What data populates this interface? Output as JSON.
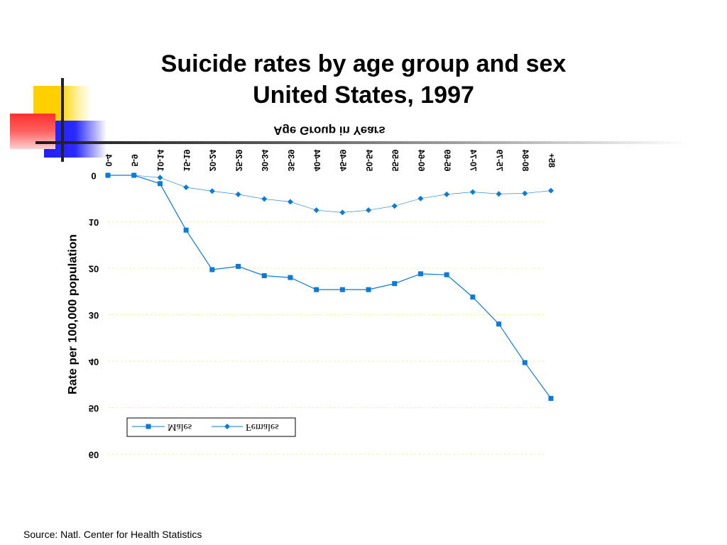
{
  "slide": {
    "title_line1": "Suicide rates by age group and sex",
    "title_line2": "United States, 1997",
    "source": "Source: Natl. Center for Health Statistics"
  },
  "colors": {
    "series": "#0a7bd8",
    "grid": "#f2f2a0",
    "deco_yellow": "#ffd700",
    "deco_red": "#ff4040",
    "deco_blue": "#2a2aff"
  },
  "chart_data": {
    "type": "line",
    "title": "",
    "xlabel": "Age Group in Years",
    "ylabel": "Rate per 100,000 population",
    "orientation": "rendered mirrored and upside-down",
    "categories": [
      "0-4",
      "5-9",
      "10-14",
      "15-19",
      "20-24",
      "25-29",
      "30-34",
      "35-39",
      "40-44",
      "45-49",
      "50-54",
      "55-59",
      "60-64",
      "65-69",
      "70-74",
      "75-79",
      "80-84",
      "85+"
    ],
    "yticks": [
      "0",
      "10",
      "20",
      "30",
      "40",
      "50",
      "60"
    ],
    "ylim": [
      0,
      60
    ],
    "grid": true,
    "legend_position": "bottom-left",
    "series": [
      {
        "name": "Males",
        "marker": "square",
        "values": [
          0,
          0,
          1.8,
          11.8,
          20.3,
          19.6,
          21.6,
          22.0,
          24.6,
          24.6,
          24.6,
          23.3,
          21.2,
          21.4,
          26.2,
          32.0,
          40.3,
          48.0
        ]
      },
      {
        "name": "Females",
        "marker": "diamond",
        "values": [
          0,
          0,
          0.5,
          2.6,
          3.4,
          4.1,
          5.1,
          5.7,
          7.5,
          8.0,
          7.5,
          6.6,
          5.0,
          4.1,
          3.6,
          4.0,
          3.9,
          3.3
        ]
      }
    ]
  }
}
